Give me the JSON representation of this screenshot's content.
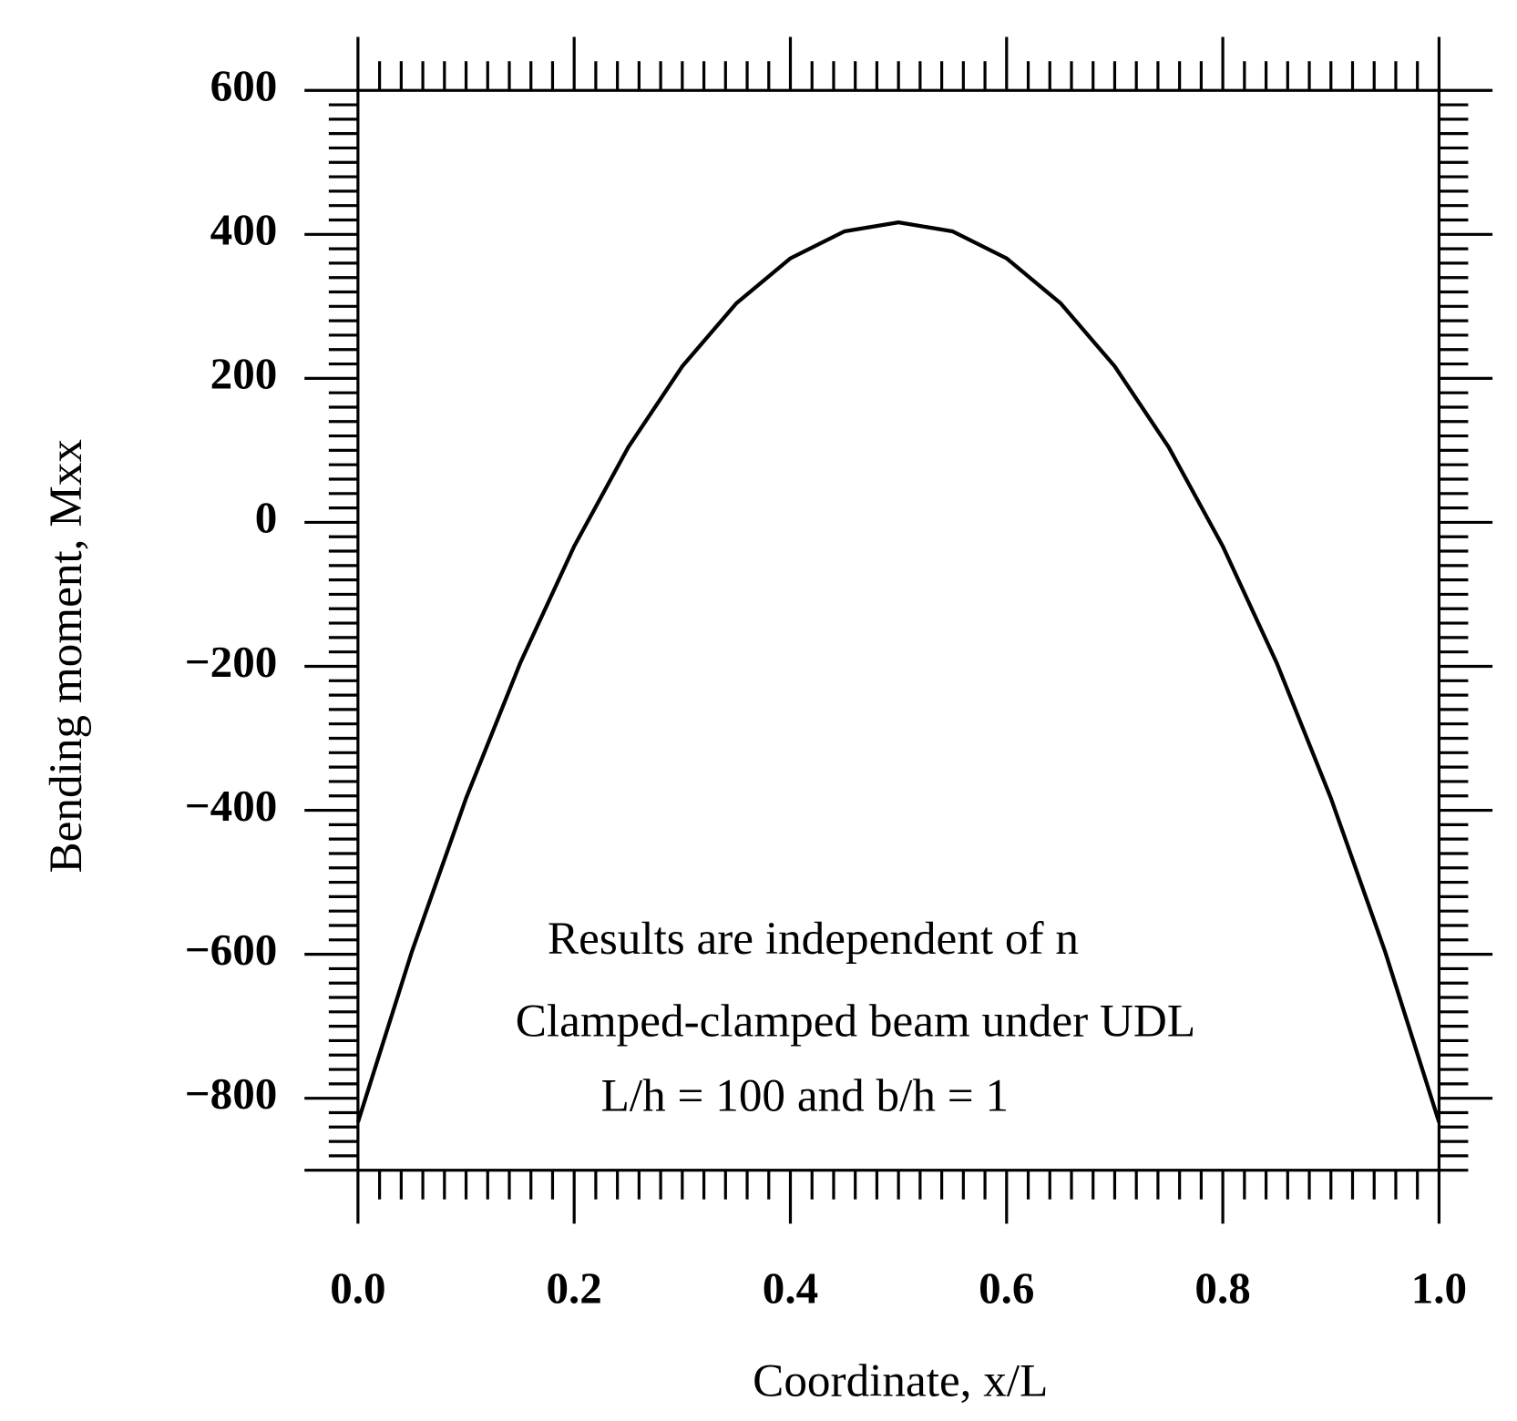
{
  "chart_data": {
    "type": "line",
    "xlabel": "Coordinate,  x/L",
    "ylabel": "Bending moment,  Mxx",
    "annotations": [
      "Results are independent of n",
      "Clamped-clamped beam under UDL",
      "L/h = 100 and b/h = 1"
    ],
    "x": [
      0,
      0.05,
      0.1,
      0.15,
      0.2,
      0.25,
      0.3,
      0.35,
      0.4,
      0.45,
      0.5,
      0.55,
      0.6,
      0.65,
      0.7,
      0.75,
      0.8,
      0.85,
      0.9,
      0.95,
      1.0
    ],
    "series": [
      {
        "color": "#000000",
        "values": [
          -833.3,
          -595.8,
          -383.3,
          -195.8,
          -33.3,
          104.2,
          216.7,
          304.2,
          366.7,
          404.2,
          416.7,
          404.2,
          366.7,
          304.2,
          216.7,
          104.2,
          -33.3,
          -195.8,
          -383.3,
          -595.8,
          -833.3
        ]
      }
    ],
    "xlim": [
      0,
      1.0
    ],
    "ylim": [
      -900,
      600
    ],
    "xticks": [
      {
        "value": 0,
        "label": "0.0"
      },
      0.2,
      0.4,
      0.6,
      0.8,
      {
        "value": 1.0,
        "label": "1.0"
      }
    ],
    "yticks": [
      {
        "value": -800,
        "label": "−800"
      },
      {
        "value": -600,
        "label": "−600"
      },
      {
        "value": -400,
        "label": "−400"
      },
      {
        "value": -200,
        "label": "−200"
      },
      0,
      200,
      400,
      600
    ],
    "grid": false
  }
}
